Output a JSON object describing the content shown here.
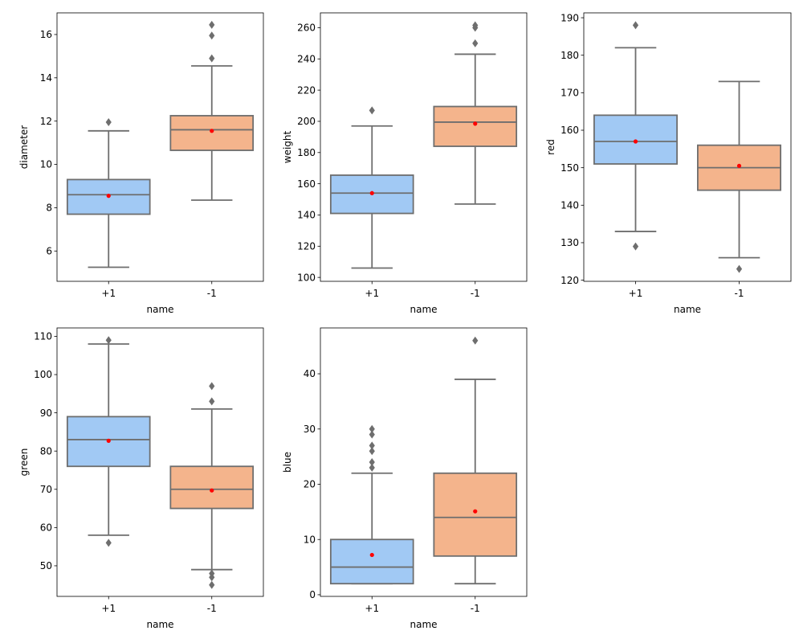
{
  "chart_data": [
    {
      "type": "box",
      "xlabel": "name",
      "ylabel": "diameter",
      "categories": [
        "+1",
        "-1"
      ],
      "ylim": [
        4.6,
        17.0
      ],
      "yticks": [
        6,
        8,
        10,
        12,
        14,
        16
      ],
      "boxes": [
        {
          "category": "+1",
          "whisker_low": 5.25,
          "q1": 7.7,
          "median": 8.6,
          "q3": 9.3,
          "whisker_high": 11.55,
          "mean": 8.55,
          "outliers": [
            11.95
          ]
        },
        {
          "category": "-1",
          "whisker_low": 8.35,
          "q1": 10.65,
          "median": 11.6,
          "q3": 12.25,
          "whisker_high": 14.55,
          "mean": 11.55,
          "outliers": [
            14.9,
            15.95,
            16.45
          ]
        }
      ]
    },
    {
      "type": "box",
      "xlabel": "name",
      "ylabel": "weight",
      "categories": [
        "+1",
        "-1"
      ],
      "ylim": [
        97.5,
        269.5
      ],
      "yticks": [
        100,
        120,
        140,
        160,
        180,
        200,
        220,
        240,
        260
      ],
      "boxes": [
        {
          "category": "+1",
          "whisker_low": 106,
          "q1": 141,
          "median": 154,
          "q3": 165.5,
          "whisker_high": 197,
          "mean": 154,
          "outliers": [
            207
          ]
        },
        {
          "category": "-1",
          "whisker_low": 147,
          "q1": 184,
          "median": 199.5,
          "q3": 209.5,
          "whisker_high": 243,
          "mean": 198.5,
          "outliers": [
            250,
            260,
            261.5
          ]
        }
      ]
    },
    {
      "type": "box",
      "xlabel": "name",
      "ylabel": "red",
      "categories": [
        "+1",
        "-1"
      ],
      "ylim": [
        119.7,
        191.3
      ],
      "yticks": [
        120,
        130,
        140,
        150,
        160,
        170,
        180,
        190
      ],
      "boxes": [
        {
          "category": "+1",
          "whisker_low": 133,
          "q1": 151,
          "median": 157,
          "q3": 164,
          "whisker_high": 182,
          "mean": 157,
          "outliers": [
            129,
            188
          ]
        },
        {
          "category": "-1",
          "whisker_low": 126,
          "q1": 144,
          "median": 150,
          "q3": 156,
          "whisker_high": 173,
          "mean": 150.5,
          "outliers": [
            123
          ]
        }
      ]
    },
    {
      "type": "box",
      "xlabel": "name",
      "ylabel": "green",
      "categories": [
        "+1",
        "-1"
      ],
      "ylim": [
        42.0,
        112.2
      ],
      "yticks": [
        50,
        60,
        70,
        80,
        90,
        100,
        110
      ],
      "boxes": [
        {
          "category": "+1",
          "whisker_low": 58,
          "q1": 76,
          "median": 83,
          "q3": 89,
          "whisker_high": 108,
          "mean": 82.7,
          "outliers": [
            56,
            109
          ]
        },
        {
          "category": "-1",
          "whisker_low": 49,
          "q1": 65,
          "median": 70,
          "q3": 76,
          "whisker_high": 91,
          "mean": 69.7,
          "outliers": [
            45,
            47,
            48,
            93,
            97
          ]
        }
      ]
    },
    {
      "type": "box",
      "xlabel": "name",
      "ylabel": "blue",
      "categories": [
        "+1",
        "-1"
      ],
      "ylim": [
        -0.3,
        48.3
      ],
      "yticks": [
        0,
        10,
        20,
        30,
        40
      ],
      "boxes": [
        {
          "category": "+1",
          "whisker_low": 2,
          "q1": 2,
          "median": 5,
          "q3": 10,
          "whisker_high": 22,
          "mean": 7.2,
          "outliers": [
            23,
            24,
            26,
            27,
            29,
            30
          ]
        },
        {
          "category": "-1",
          "whisker_low": 2,
          "q1": 7,
          "median": 14,
          "q3": 22,
          "whisker_high": 39,
          "mean": 15.1,
          "outliers": [
            46
          ]
        }
      ]
    }
  ],
  "colors": {
    "box_fills": [
      "#a1c9f4",
      "#f4b48c"
    ],
    "line": "#6e6e6e",
    "mean_marker": "#ff0000",
    "outlier": "#6e6e6e"
  }
}
